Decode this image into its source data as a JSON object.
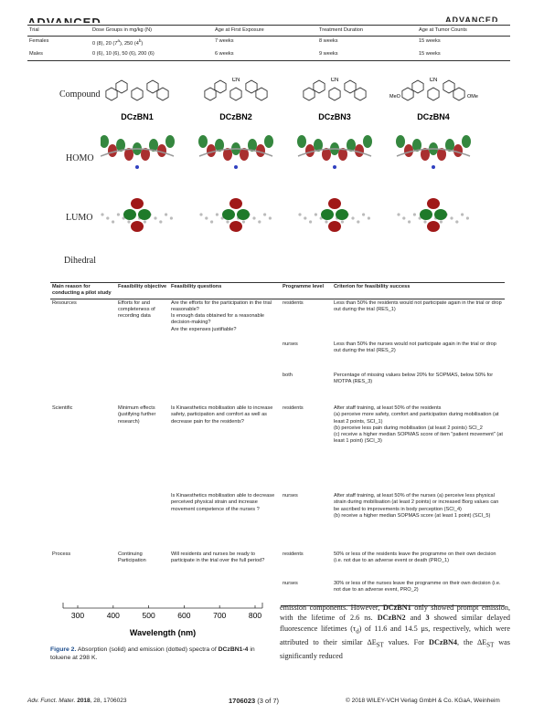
{
  "header": {
    "logo_left": "ADVANCED",
    "logo_right": "ADVANCED"
  },
  "table1": {
    "header": [
      "Trial",
      "Dose Groups in mg/kg (N)",
      "Age at First Exposure",
      "Treatment Duration",
      "Age at Tumor Counts"
    ],
    "rows": [
      {
        "trial": "Females",
        "dose": [
          "0 (8), 20 (7",
          "a",
          "), 250 (4",
          "b",
          ")"
        ],
        "age": "7 weeks",
        "duration": "8 weeks",
        "tumor": "15 weeks"
      },
      {
        "trial": "Males",
        "dose": [
          "0 (6), 10 (6), 50 (6), 200 (6)"
        ],
        "age": "6 weeks",
        "duration": "9 weeks",
        "tumor": "15 weeks"
      }
    ]
  },
  "figure1": {
    "row_labels": [
      "Compound",
      "HOMO",
      "LUMO",
      "Dihedral"
    ],
    "compounds": [
      "DCzBN1",
      "DCzBN2",
      "DCzBN3",
      "DCzBN4"
    ],
    "cn": "CN",
    "meo": "MeO",
    "ome": "OMe"
  },
  "table2": {
    "header": [
      "Main reason for conducting a pilot study",
      "Feasibility objective",
      "Feasibility questions",
      "Programme level",
      "Criterion for feasibility success"
    ],
    "groups": [
      {
        "reason": "Resources",
        "objective": "Efforts for and completeness of recording data",
        "items": [
          {
            "question": "Are the efforts for the participation in the trial reasonable?\nIs enough data obtained for a reasonable decision-making?\nAre the expenses justifiable?",
            "rows": [
              {
                "level": "residents",
                "criterion": "Less than 50% the residents would not participate again in the trial or drop out during the trial (RES_1)"
              },
              {
                "level": "nurses",
                "criterion": "Less than 50% the nurses would not participate again in the trial or drop out during the trial (RES_2)"
              },
              {
                "level": "both",
                "criterion": "Percentage of missing values below 20% for SOPMAS, below 50% for MOTPA (RES_3)"
              }
            ]
          }
        ]
      },
      {
        "reason": "Scientific",
        "objective": "Minimum effects (justifying further research)",
        "items": [
          {
            "question": "Is Kinaesthetics mobilisation able to increase safety, participation and comfort as well as decrease pain for the residents?",
            "rows": [
              {
                "level": "residents",
                "criterion": "After staff training, at least 50% of the residents\n(a) perceive more safety, comfort and participation during mobilisation (at least 2 points, SCI_1)\n(b) perceive less pain during mobilisation (at least 2 points) SCI_2\n(c) receive a higher median SOPMAS score of item \"patient movement\" (at least 1 point) (SCI_3)"
              }
            ]
          },
          {
            "question": "Is Kinaesthetics mobilisation able to decrease perceived physical strain and increase movement competence of the nurses ?",
            "rows": [
              {
                "level": "nurses",
                "criterion": "After staff training, at least 50% of the nurses (a) perceive less physical strain during mobilisation (at least 2 points) or increased Borg values can be ascribed to improvements in body perception (SCI_4)\n(b) receive a higher median SOPMAS score (at least 1 point) (SCI_5)"
              }
            ]
          }
        ]
      },
      {
        "reason": "Process",
        "objective": "Continuing Participation",
        "items": [
          {
            "question": "Will residents and nurses be ready to participate in the trial over the full period?",
            "rows": [
              {
                "level": "residents",
                "criterion": "50% or less of the residents leave the programme on their own decision (i.e. not due to an adverse event or death (PRO_1)"
              },
              {
                "level": "nurses",
                "criterion": "30% or less of the nurses leave the programme on their own decision (i.e. not due to an adverse event, PRO_2)"
              }
            ]
          }
        ]
      }
    ]
  },
  "figure2": {
    "xticks": [
      300,
      400,
      500,
      600,
      700,
      800
    ],
    "xlim": [
      300,
      800
    ],
    "xlabel": "Wavelength (nm)",
    "caption": [
      "Figure 2.",
      "Absorption (solid) and emission (dotted) spectra of ",
      "DCzBN1-4",
      " in toluene at 298 K."
    ]
  },
  "body": [
    "emission components. However, ",
    "DCzBN1",
    " only showed prompt emission, with the lifetime of 2.6 ns. ",
    "DCzBN2",
    " and ",
    "3",
    " showed similar delayed fluorescence lifetimes (τ",
    "d",
    ") of 11.6 and 14.5 µs, respectively, which were attributed to their similar ΔE",
    "ST",
    " values. For ",
    "DCzBN4",
    ", the ΔE",
    "ST",
    " was significantly reduced"
  ],
  "footer": {
    "journal": [
      "Adv. Funct. Mater.",
      "2018",
      ", 28, 1706023"
    ],
    "page": "1706023",
    "page_of": " (3 of 7)",
    "copyright": "© 2018 WILEY-VCH Verlag GmbH & Co. KGaA, Weinheim"
  }
}
